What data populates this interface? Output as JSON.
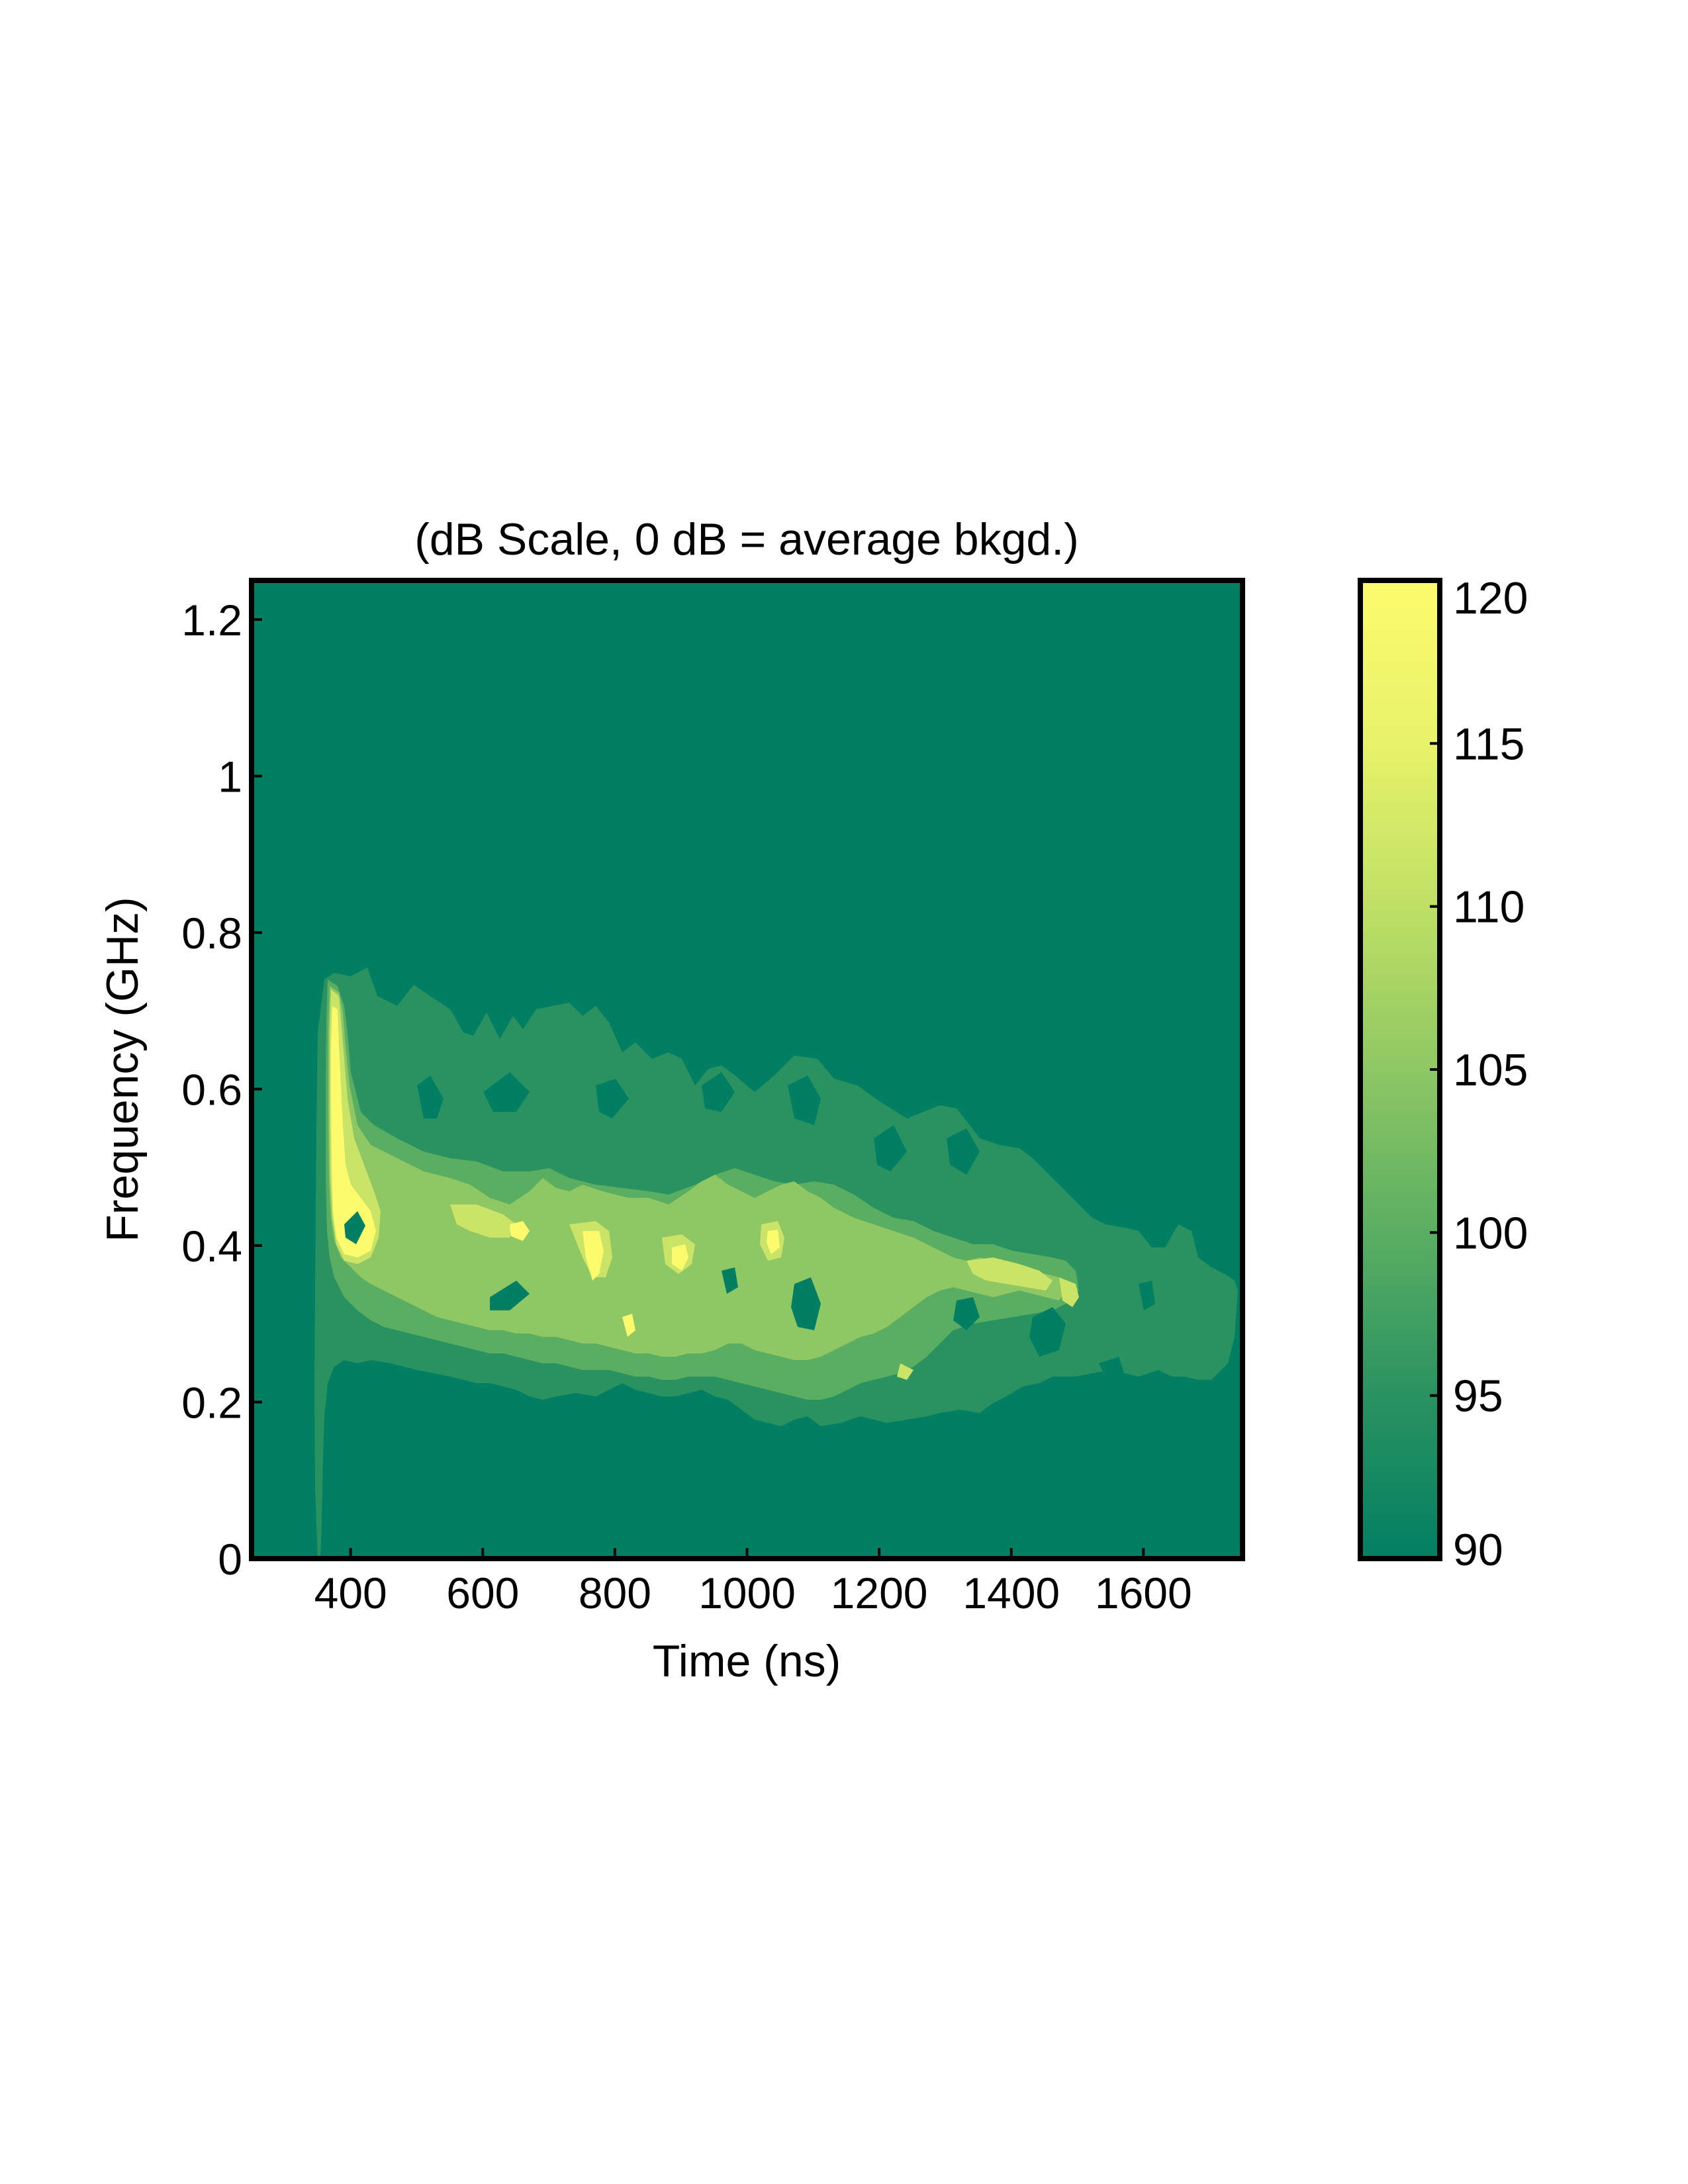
{
  "chart_data": {
    "type": "heatmap",
    "title": "(dB Scale, 0 dB = average bkgd.)",
    "xlabel": "Time (ns)",
    "ylabel": "Frequency (GHz)",
    "xlim": [
      250,
      1750
    ],
    "ylim": [
      0,
      1.25
    ],
    "x_ticks": [
      400,
      600,
      800,
      1000,
      1200,
      1400,
      1600
    ],
    "y_ticks": [
      0,
      0.2,
      0.4,
      0.6,
      0.8,
      1,
      1.2
    ],
    "y_tick_labels": [
      "0",
      "0.2",
      "0.4",
      "0.6",
      "0.8",
      "1",
      "1.2"
    ],
    "colorbar": {
      "min": 90,
      "max": 120,
      "ticks": [
        90,
        95,
        100,
        105,
        110,
        115,
        120
      ],
      "colors": [
        "#027f62",
        "#2a9261",
        "#5aae62",
        "#8ec764",
        "#bfe065",
        "#e8f26a",
        "#fdfb6c"
      ]
    },
    "contour_levels": [
      {
        "level": 95,
        "color": "#2a9261",
        "region": "broad band",
        "x_range": [
          360,
          1730
        ],
        "y_range": [
          0.2,
          0.75
        ]
      },
      {
        "level": 100,
        "color": "#5aae62",
        "region": "mid band",
        "x_range": [
          360,
          1700
        ],
        "y_range": [
          0.2,
          0.62
        ]
      },
      {
        "level": 105,
        "color": "#8ec764",
        "region": "core band",
        "x_range": [
          360,
          1540
        ],
        "y_range": [
          0.26,
          0.52
        ]
      },
      {
        "level": 110,
        "color": "#c9e466",
        "region": "bright spots",
        "x_range": [
          365,
          1100
        ],
        "y_range": [
          0.35,
          0.72
        ]
      },
      {
        "level": 115,
        "color": "#fdfb6c",
        "region": "peak spots",
        "x_range": [
          365,
          1080
        ],
        "y_range": [
          0.38,
          0.7
        ]
      }
    ]
  }
}
